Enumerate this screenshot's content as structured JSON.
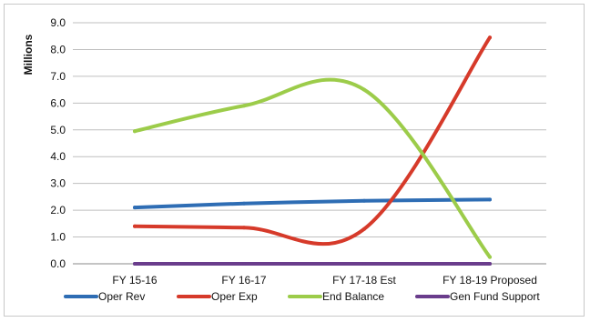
{
  "chart_data": {
    "type": "line",
    "ylabel": "Millions",
    "ylim": [
      0,
      9
    ],
    "yticks": [
      "0.0",
      "1.0",
      "2.0",
      "3.0",
      "4.0",
      "5.0",
      "6.0",
      "7.0",
      "8.0",
      "9.0"
    ],
    "categories": [
      "FY 15-16",
      "FY 16-17",
      "FY 17-18 Est",
      "FY 18-19 Proposed"
    ],
    "grid": "horizontal",
    "legend": "bottom",
    "series": [
      {
        "name": "Oper Rev",
        "color": "#2e6db4",
        "values": [
          2.1,
          2.25,
          2.35,
          2.4
        ]
      },
      {
        "name": "Oper Exp",
        "color": "#d63a2a",
        "values": [
          1.4,
          1.35,
          1.3,
          8.45
        ]
      },
      {
        "name": "End Balance",
        "color": "#9ccc4a",
        "values": [
          4.95,
          5.9,
          6.5,
          0.25
        ]
      },
      {
        "name": "Gen Fund Support",
        "color": "#6a3d8c",
        "values": [
          0.0,
          0.0,
          0.0,
          0.0
        ]
      }
    ]
  }
}
